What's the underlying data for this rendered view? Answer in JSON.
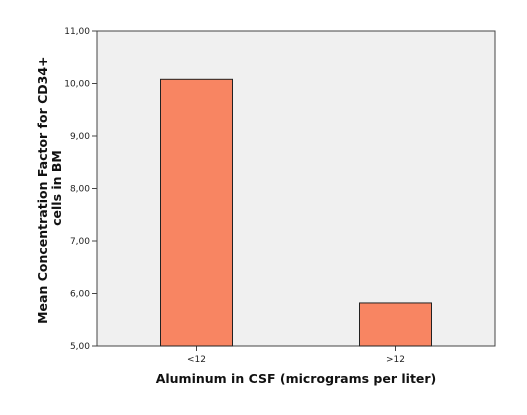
{
  "colors": {
    "plot_background": "#f0f0f0",
    "bar_fill": "#f88562",
    "bar_stroke": "#222222",
    "axis": "#444444"
  },
  "chart_data": {
    "type": "bar",
    "categories": [
      "<12",
      ">12"
    ],
    "values": [
      10.08,
      5.82
    ],
    "title": "",
    "xlabel": "Aluminum in CSF (micrograms per liter)",
    "ylabel_lines": [
      "Mean Concentration Factor for CD34+",
      "cells in BM"
    ],
    "ylim": [
      5.0,
      11.0
    ],
    "yticks": [
      5,
      6,
      7,
      8,
      9,
      10,
      11
    ],
    "ytick_labels": [
      "5,00",
      "6,00",
      "7,00",
      "8,00",
      "9,00",
      "10,00",
      "11,00"
    ],
    "grid": false,
    "legend": "none"
  }
}
